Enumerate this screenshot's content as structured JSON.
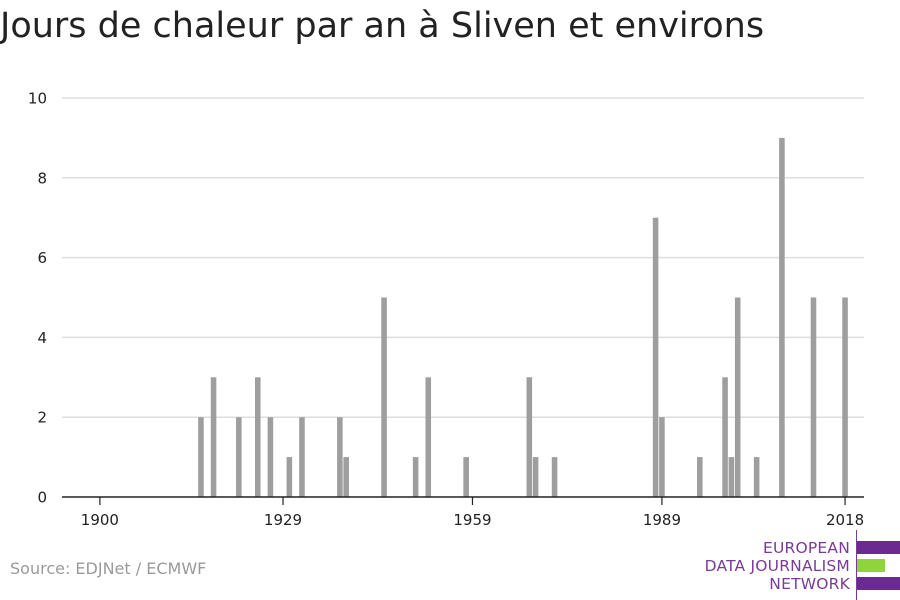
{
  "title": "Jours de chaleur par an à Sliven et environs",
  "source": "Source: EDJNet / ECMWF",
  "logo": {
    "line1": "EUROPEAN",
    "line2": "DATA JOURNALISM",
    "line3": "NETWORK",
    "colors": {
      "purple": "#6b2a90",
      "green": "#8fd43a"
    }
  },
  "colors": {
    "bar": "#9e9e9e",
    "grid": "#dddddd",
    "axis": "#222222",
    "text": "#222222"
  },
  "chart_data": {
    "type": "bar",
    "title": "Jours de chaleur par an à Sliven et environs",
    "xlabel": "",
    "ylabel": "",
    "xlim": [
      1894,
      2021
    ],
    "ylim": [
      0,
      10
    ],
    "xticks": [
      1900,
      1929,
      1959,
      1989,
      2018
    ],
    "yticks": [
      0,
      2,
      4,
      6,
      8,
      10
    ],
    "grid": true,
    "x": [
      1916,
      1918,
      1922,
      1925,
      1927,
      1930,
      1932,
      1938,
      1939,
      1945,
      1950,
      1952,
      1958,
      1968,
      1969,
      1972,
      1988,
      1989,
      1995,
      1999,
      2000,
      2001,
      2004,
      2008,
      2013,
      2018
    ],
    "values": [
      2,
      3,
      2,
      3,
      2,
      1,
      2,
      2,
      1,
      5,
      1,
      3,
      1,
      3,
      1,
      1,
      7,
      2,
      1,
      3,
      1,
      5,
      1,
      9,
      5,
      5
    ]
  }
}
